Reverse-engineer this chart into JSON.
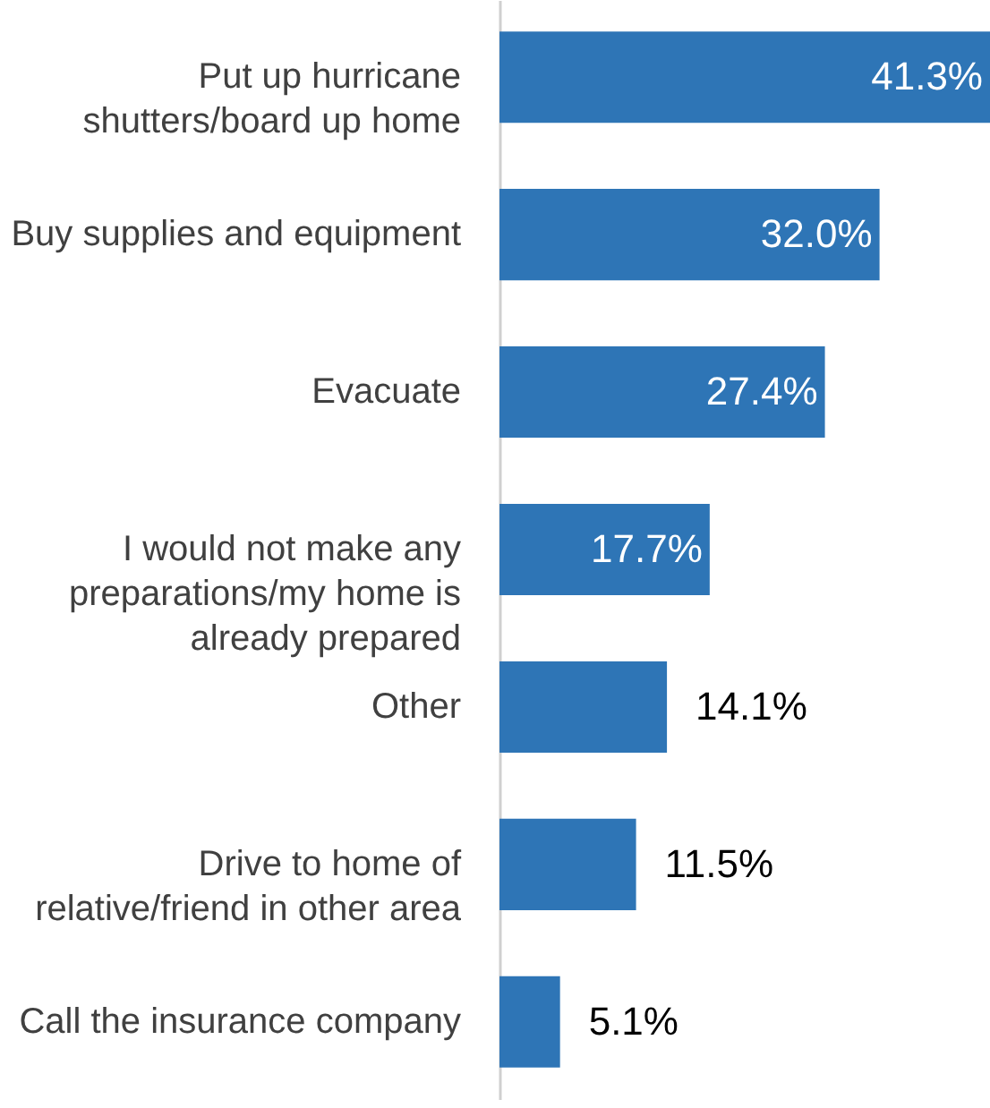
{
  "chart_data": {
    "type": "bar",
    "orientation": "horizontal",
    "categories": [
      "Put up hurricane shutters/board up home",
      "Buy supplies and equipment",
      "Evacuate",
      "I would not make any preparations/my home is already prepared",
      "Other",
      "Drive to home of relative/friend in other area",
      "Call the insurance company"
    ],
    "values": [
      41.3,
      32.0,
      27.4,
      17.7,
      14.1,
      11.5,
      5.1
    ],
    "value_labels": [
      "41.3%",
      "32.0%",
      "27.4%",
      "17.7%",
      "14.1%",
      "11.5%",
      "5.1%"
    ],
    "color": "#2e75b6",
    "grid": false,
    "tick_labels": "y"
  }
}
